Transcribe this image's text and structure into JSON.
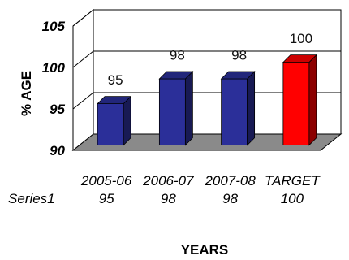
{
  "chart_data": {
    "type": "bar",
    "categories": [
      "2005-06",
      "2006-07",
      "2007-08",
      "TARGET"
    ],
    "series": [
      {
        "name": "Series1",
        "values": [
          95,
          98,
          98,
          100
        ]
      }
    ],
    "xlabel": "YEARS",
    "ylabel": "% AGE",
    "ylim": [
      90,
      105
    ],
    "yticks": [
      90,
      95,
      100,
      105
    ],
    "grid": true,
    "legend": "none",
    "three_d": true,
    "colors": {
      "bar": "#2b2f99",
      "target_bar": "#ff0000",
      "floor": "#8a8a8a"
    }
  }
}
